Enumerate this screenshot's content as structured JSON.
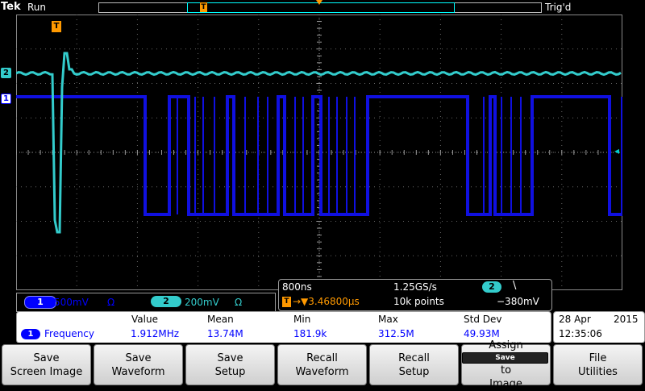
{
  "header": {
    "brand": "Tek",
    "acq_state": "Run",
    "trigger_status": "Trig'd"
  },
  "markers": {
    "ch1": "1",
    "ch2": "2",
    "trigger": "T"
  },
  "channels": [
    {
      "number": "1",
      "scale": "500mV",
      "coupling_symbol": "Ω",
      "color": "#0000ff"
    },
    {
      "number": "2",
      "scale": "200mV",
      "coupling_symbol": "Ω",
      "color": "#33cccc"
    }
  ],
  "timebase": {
    "horizontal_scale": "800ns",
    "sample_rate": "1.25GS/s",
    "trigger_marker": "T",
    "trigger_position": "→▼3.46800µs",
    "record_length": "10k points",
    "trigger_source": "2",
    "trigger_slope": "\\",
    "trigger_level": "−380mV"
  },
  "measurements": {
    "headers": [
      "Value",
      "Mean",
      "Min",
      "Max",
      "Std Dev"
    ],
    "rows": [
      {
        "channel": "1",
        "name": "Frequency",
        "value": "1.912MHz",
        "mean": "13.74M",
        "min": "181.9k",
        "max": "312.5M",
        "std_dev": "49.93M"
      }
    ]
  },
  "datetime": {
    "date": "28 Apr",
    "year": "2015",
    "time": "12:35:06"
  },
  "softkeys": [
    {
      "line1": "Save",
      "line2": "Screen Image"
    },
    {
      "line1": "Save",
      "line2": "Waveform"
    },
    {
      "line1": "Save",
      "line2": "Setup"
    },
    {
      "line1": "Recall",
      "line2": "Waveform"
    },
    {
      "line1": "Recall",
      "line2": "Setup"
    },
    {
      "line1": "Assign",
      "badge": "Save",
      "line2": "to",
      "line3": "Image"
    },
    {
      "line1": "File",
      "line2": "Utilities"
    }
  ],
  "colors": {
    "ch1": "#0000ff",
    "ch2": "#33cccc",
    "trigger": "#ff9900",
    "graticule": "#888888"
  }
}
